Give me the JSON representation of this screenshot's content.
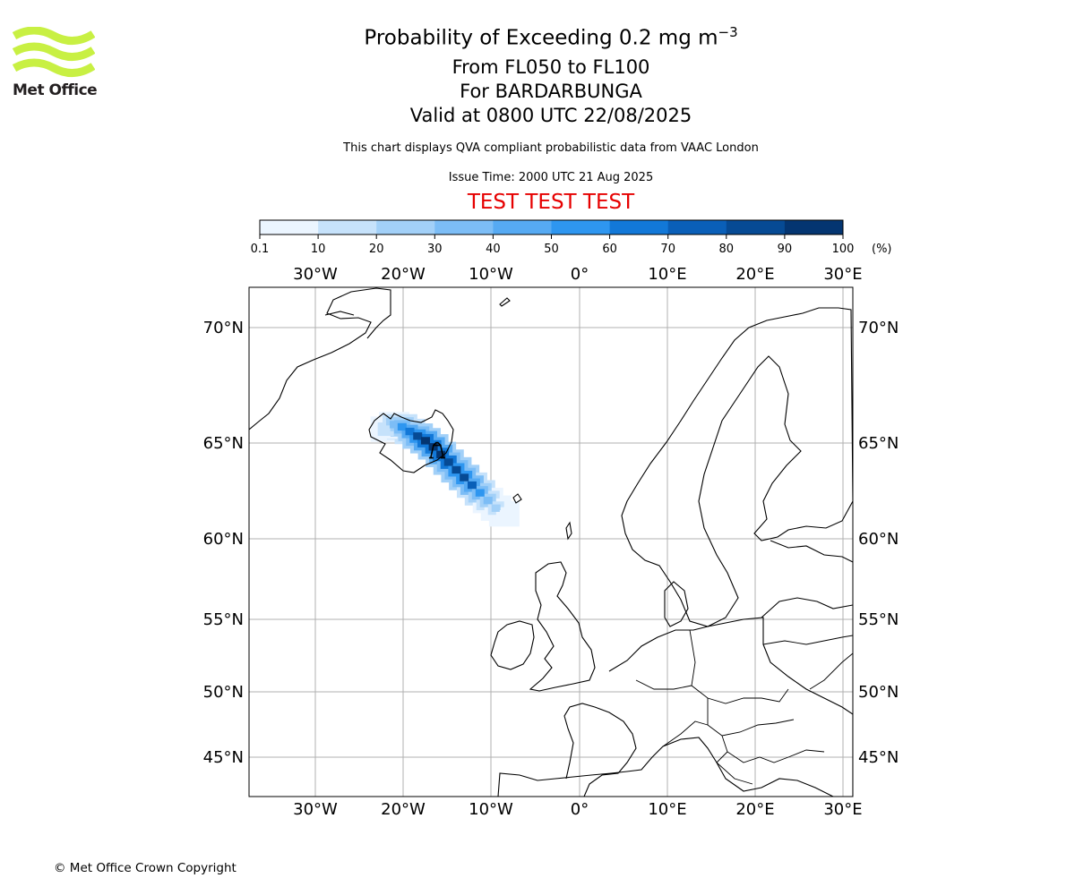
{
  "header": {
    "title_main": "Probability of Exceeding 0.2 mg m",
    "title_sup": "−3",
    "flight_levels": "From FL050 to FL100",
    "volcano": "For BARDARBUNGA",
    "valid_time": "Valid at 0800 UTC 22/08/2025",
    "description": "This chart displays QVA compliant probabilistic data from VAAC London",
    "issue_time": "Issue Time: 2000 UTC 21 Aug 2025",
    "test_banner": "TEST TEST TEST"
  },
  "logo": {
    "text": "Met Office",
    "color": "#c8f043",
    "icon": "met-office-wave-icon"
  },
  "colorbar": {
    "ticks": [
      "0.1",
      "10",
      "20",
      "30",
      "40",
      "50",
      "60",
      "70",
      "80",
      "90",
      "100"
    ],
    "unit": "(%)",
    "colors": [
      "#ebf5ff",
      "#c6e2fb",
      "#a2d0f8",
      "#7cbdf6",
      "#56aaf3",
      "#2e96f0",
      "#1278d8",
      "#0a5fb8",
      "#064a94",
      "#043571",
      "#02234f"
    ]
  },
  "map": {
    "lon_labels": [
      "30°W",
      "20°W",
      "10°W",
      "0°",
      "10°E",
      "20°E",
      "30°E"
    ],
    "lat_labels": [
      "70°N",
      "65°N",
      "60°N",
      "55°N",
      "50°N",
      "45°N"
    ],
    "grid_color": "#b0b0b0",
    "plume_probability": [
      {
        "lon": -24.0,
        "lat": 65.6,
        "p": 15
      },
      {
        "lon": -23.0,
        "lat": 65.8,
        "p": 30
      },
      {
        "lon": -22.0,
        "lat": 65.7,
        "p": 50
      },
      {
        "lon": -21.0,
        "lat": 65.5,
        "p": 65
      },
      {
        "lon": -20.0,
        "lat": 65.3,
        "p": 80
      },
      {
        "lon": -19.0,
        "lat": 65.1,
        "p": 90
      },
      {
        "lon": -18.0,
        "lat": 64.8,
        "p": 95
      },
      {
        "lon": -17.0,
        "lat": 64.4,
        "p": 90
      },
      {
        "lon": -16.0,
        "lat": 64.0,
        "p": 88
      },
      {
        "lon": -15.0,
        "lat": 63.6,
        "p": 85
      },
      {
        "lon": -14.0,
        "lat": 63.2,
        "p": 80
      },
      {
        "lon": -13.0,
        "lat": 62.8,
        "p": 70
      },
      {
        "lon": -12.0,
        "lat": 62.4,
        "p": 55
      },
      {
        "lon": -11.0,
        "lat": 62.0,
        "p": 35
      },
      {
        "lon": -10.0,
        "lat": 61.6,
        "p": 20
      },
      {
        "lon": -9.0,
        "lat": 61.3,
        "p": 8
      }
    ],
    "volcano_marker": {
      "lon": -17.5,
      "lat": 64.6
    }
  },
  "footer": {
    "copyright": "© Met Office Crown Copyright"
  }
}
